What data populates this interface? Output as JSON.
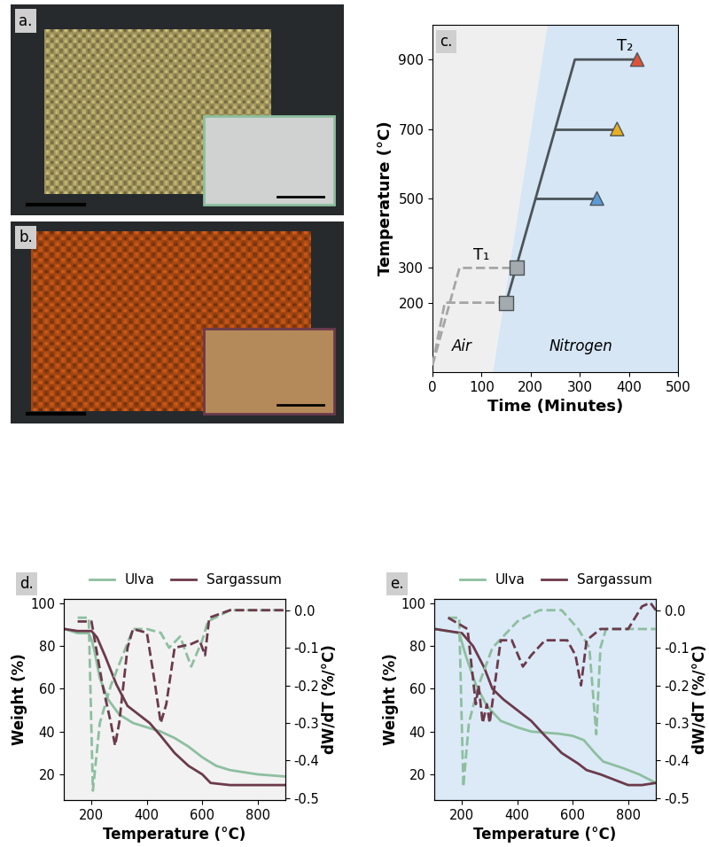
{
  "chart_data": [
    {
      "type": "image",
      "title": "a."
    },
    {
      "type": "image",
      "title": "b."
    },
    {
      "type": "line",
      "title": "c.",
      "x_label": "Time (Minutes)",
      "y_label": "Temperature (°C)",
      "xlim": [
        0,
        500
      ],
      "xticks": [
        0,
        100,
        200,
        300,
        400,
        500
      ],
      "ylim": [
        0,
        1000
      ],
      "yticks": [
        200,
        300,
        500,
        700,
        900
      ],
      "boundary": {
        "x": [
          122,
          235
        ],
        "y": [
          0,
          1000
        ]
      },
      "regions": [
        {
          "text": "Air",
          "color": "#efefef",
          "x": 40,
          "y": 50
        },
        {
          "text": "Nitrogen",
          "color": "#d6e6f5",
          "x": 237,
          "y": 50
        }
      ],
      "annotations": [
        {
          "text": "T₁",
          "x": 100,
          "y": 315
        },
        {
          "text": "T₂",
          "x": 392,
          "y": 915
        }
      ],
      "series": [
        {
          "color": "#a6a6a6",
          "line_style": "dashed",
          "x": [
            0,
            25,
            150
          ],
          "values": [
            20,
            200,
            200
          ]
        },
        {
          "color": "#a6a6a6",
          "line_style": "dashed",
          "x": [
            0,
            55,
            172
          ],
          "values": [
            20,
            300,
            300
          ]
        },
        {
          "color": "#4d5458",
          "line_style": "solid",
          "x": [
            150,
            290,
            417
          ],
          "values": [
            200,
            900,
            900
          ]
        },
        {
          "color": "#4d5458",
          "line_style": "solid",
          "x": [
            210,
            335
          ],
          "values": [
            500,
            500
          ]
        },
        {
          "color": "#4d5458",
          "line_style": "solid",
          "x": [
            250,
            376
          ],
          "values": [
            700,
            700
          ]
        },
        {
          "type": "scatter",
          "marker": "square",
          "color": "#a3abaf",
          "x": [
            150,
            172
          ],
          "values": [
            200,
            300
          ]
        },
        {
          "type": "scatter",
          "marker": "triangle",
          "colors": [
            "#5b9bd5",
            "#e8b021",
            "#e0533a"
          ],
          "x": [
            335,
            376,
            417
          ],
          "values": [
            500,
            700,
            900
          ]
        }
      ]
    },
    {
      "type": "line",
      "title": "d.",
      "x_label": "Temperature (°C)",
      "y_label": "Weight (%)",
      "y2_label": "dW/dT (%/°C)",
      "xlim": [
        100,
        900
      ],
      "xticks": [
        200,
        400,
        600,
        800
      ],
      "ylim": [
        8,
        102
      ],
      "yticks": [
        20,
        40,
        60,
        80,
        100
      ],
      "y2lim": [
        -0.505,
        0.03
      ],
      "y2ticks": [
        {
          "value": 0,
          "label": "0.0"
        },
        -0.1,
        -0.2,
        -0.3,
        -0.4,
        -0.5
      ],
      "legend": "top",
      "series": [
        {
          "name": "Ulva",
          "color": "#8dbf9f",
          "line_style": "solid",
          "x": [
            100,
            150,
            190,
            200,
            210,
            230,
            260,
            300,
            350,
            400,
            450,
            500,
            550,
            600,
            650,
            700,
            800,
            900
          ],
          "values": [
            88,
            86,
            86,
            83,
            78,
            65,
            55,
            48,
            44,
            42,
            40,
            37,
            33,
            28,
            24,
            22,
            20,
            19
          ]
        },
        {
          "name": "Sargassum",
          "color": "#6b3a4b",
          "line_style": "solid",
          "x": [
            100,
            150,
            200,
            220,
            250,
            290,
            330,
            370,
            410,
            450,
            500,
            550,
            600,
            630,
            700,
            900
          ],
          "values": [
            88,
            87,
            87,
            84,
            75,
            62,
            52,
            48,
            44,
            38,
            30,
            24,
            20,
            16,
            15,
            15
          ]
        },
        {
          "color": "#8dbf9f",
          "line_style": "dashed",
          "axis": "y2",
          "x": [
            150,
            190,
            205,
            230,
            270,
            350,
            400,
            450,
            480,
            520,
            560,
            600,
            620,
            700,
            900
          ],
          "values": [
            -0.02,
            -0.02,
            -0.48,
            -0.3,
            -0.2,
            -0.05,
            -0.05,
            -0.06,
            -0.1,
            -0.07,
            -0.15,
            -0.08,
            -0.03,
            0.0,
            0.0
          ]
        },
        {
          "color": "#6b3a4b",
          "line_style": "dashed",
          "axis": "y2",
          "x": [
            150,
            200,
            240,
            270,
            285,
            300,
            330,
            350,
            400,
            430,
            450,
            470,
            500,
            560,
            590,
            610,
            625,
            700,
            900
          ],
          "values": [
            -0.03,
            -0.03,
            -0.2,
            -0.3,
            -0.36,
            -0.3,
            -0.1,
            -0.05,
            -0.06,
            -0.2,
            -0.3,
            -0.25,
            -0.1,
            -0.09,
            -0.08,
            -0.12,
            -0.02,
            0.0,
            0.0
          ]
        }
      ]
    },
    {
      "type": "line",
      "title": "e.",
      "x_label": "Temperature (°C)",
      "y_label": "Weight (%)",
      "y2_label": "dW/dT (%/°C)",
      "xlim": [
        100,
        900
      ],
      "xticks": [
        200,
        400,
        600,
        800
      ],
      "ylim": [
        8,
        102
      ],
      "yticks": [
        20,
        40,
        60,
        80,
        100
      ],
      "y2lim": [
        -0.505,
        0.03
      ],
      "y2ticks": [
        {
          "value": 0,
          "label": "0.0"
        },
        -0.1,
        -0.2,
        -0.3,
        -0.4,
        -0.5
      ],
      "legend": "top",
      "series": [
        {
          "name": "Ulva",
          "color": "#8dbf9f",
          "line_style": "solid",
          "x": [
            100,
            190,
            215,
            250,
            290,
            340,
            400,
            450,
            550,
            600,
            640,
            680,
            710,
            780,
            840,
            900
          ],
          "values": [
            88,
            86,
            75,
            62,
            52,
            45,
            42,
            40,
            39,
            38,
            36,
            30,
            26,
            23,
            20,
            16
          ]
        },
        {
          "name": "Sargassum",
          "color": "#6b3a4b",
          "line_style": "solid",
          "x": [
            100,
            200,
            240,
            280,
            310,
            350,
            400,
            450,
            500,
            560,
            620,
            650,
            700,
            760,
            800,
            850,
            900
          ],
          "values": [
            88,
            86,
            80,
            70,
            60,
            55,
            50,
            45,
            38,
            30,
            25,
            22,
            20,
            17,
            15,
            15,
            16
          ]
        },
        {
          "color": "#8dbf9f",
          "line_style": "dashed",
          "axis": "y2",
          "x": [
            150,
            190,
            205,
            225,
            260,
            310,
            400,
            480,
            560,
            620,
            660,
            685,
            700,
            720,
            900
          ],
          "values": [
            -0.02,
            -0.02,
            -0.47,
            -0.3,
            -0.2,
            -0.1,
            -0.03,
            0.0,
            0.0,
            -0.05,
            -0.1,
            -0.33,
            -0.1,
            -0.05,
            -0.05
          ]
        },
        {
          "color": "#6b3a4b",
          "line_style": "dashed",
          "axis": "y2",
          "x": [
            150,
            220,
            250,
            260,
            275,
            290,
            300,
            340,
            380,
            420,
            450,
            500,
            580,
            610,
            630,
            650,
            700,
            800,
            850,
            880,
            900
          ],
          "values": [
            -0.02,
            -0.05,
            -0.25,
            -0.2,
            -0.3,
            -0.25,
            -0.3,
            -0.08,
            -0.08,
            -0.15,
            -0.12,
            -0.08,
            -0.08,
            -0.12,
            -0.2,
            -0.08,
            -0.05,
            -0.05,
            0.01,
            0.02,
            0.0
          ]
        }
      ]
    }
  ]
}
